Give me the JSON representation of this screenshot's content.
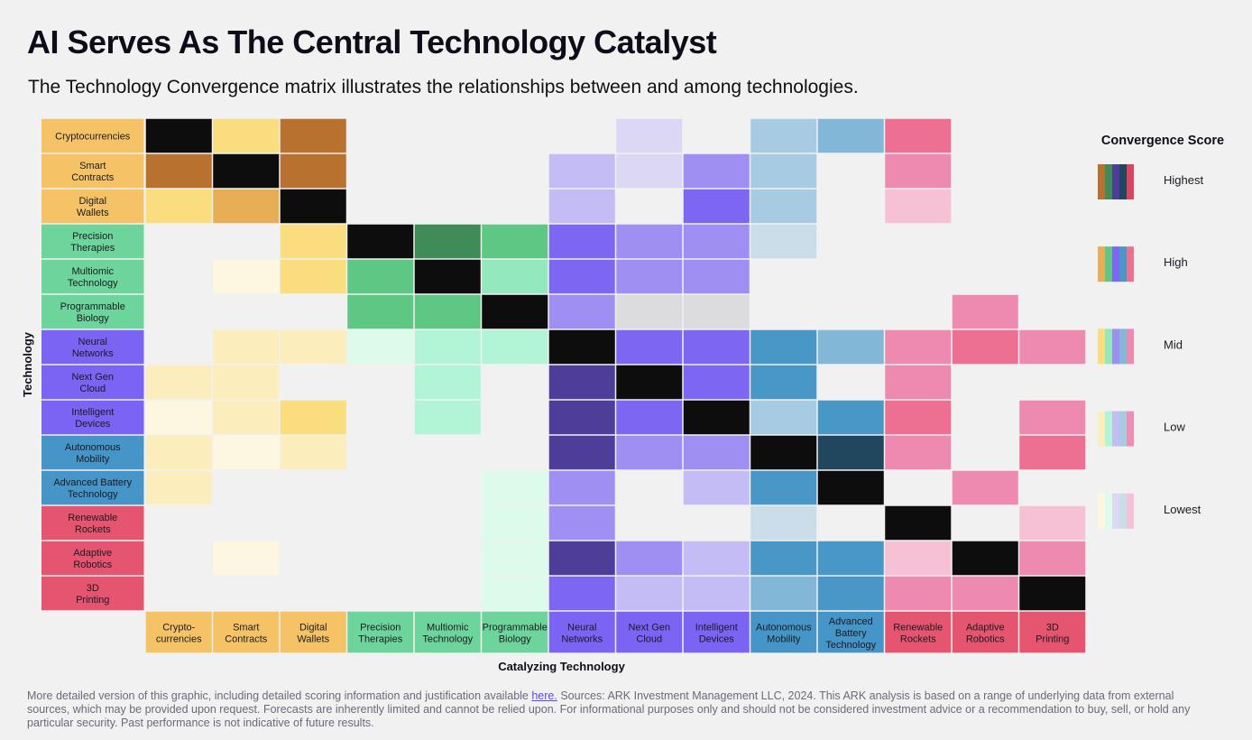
{
  "title": "AI Serves As The Central Technology Catalyst",
  "subtitle": "The Technology Convergence matrix illustrates the relationships between and among technologies.",
  "footer": {
    "text_before": "More detailed version of this graphic, including detailed scoring information and justification available ",
    "link_label": "here.",
    "text_after": " Sources: ARK Investment Management LLC, 2024. This ARK analysis is based on a range of underlying data from external sources, which may be provided upon request. Forecasts are inherently limited and cannot be relied upon. For informational purposes only and should not be considered investment advice or a recommendation to buy, sell, or hold any particular security. Past performance is not indicative of future results."
  },
  "chart_data": {
    "type": "heatmap",
    "ylabel": "Technology",
    "xlabel": "Catalyzing Technology",
    "legend_title": "Convergence Score",
    "legend_placement": "right",
    "levels": [
      "Lowest",
      "Low",
      "Mid",
      "High",
      "Highest"
    ],
    "legend_order": [
      "Highest",
      "High",
      "Mid",
      "Low",
      "Lowest"
    ],
    "groups": {
      "crypto": {
        "header": "#f5c366",
        "shades": [
          "#fdf6e0",
          "#fcedbc",
          "#fadd7e",
          "#e8ae55",
          "#b8712f"
        ]
      },
      "bio": {
        "header": "#6dd59b",
        "shades": [
          "#ddfbeb",
          "#b1f4d6",
          "#93e9bd",
          "#5ec784",
          "#3f8c58"
        ]
      },
      "ai": {
        "header": "#7b63f3",
        "shades": [
          "#dbd7f5",
          "#c4bcf4",
          "#9f8ff2",
          "#7d66f2",
          "#4e3e9a"
        ]
      },
      "mobility": {
        "header": "#4595c8",
        "shades": [
          "#cbdde8",
          "#a6cbe2",
          "#82b7d7",
          "#4897c6",
          "#21475f"
        ]
      },
      "robotics": {
        "header": "#e5556f",
        "shades": [
          "#f6c0d5",
          "#f08eb1",
          "#ee8aaf",
          "#ed7093",
          "#d9455f"
        ]
      },
      "neutral": {
        "header": "#dcdcdf",
        "shades": [
          "#dcdcdf",
          "#dcdcdf",
          "#dcdcdf",
          "#dcdcdf",
          "#dcdcdf"
        ]
      }
    },
    "self_color": "#0d0d0d",
    "rows": [
      {
        "label": "Cryptocurrencies",
        "group": "crypto"
      },
      {
        "label": "Smart\nContracts",
        "group": "crypto"
      },
      {
        "label": "Digital\nWallets",
        "group": "crypto"
      },
      {
        "label": "Precision\nTherapies",
        "group": "bio"
      },
      {
        "label": "Multiomic\nTechnology",
        "group": "bio"
      },
      {
        "label": "Programmable\nBiology",
        "group": "bio"
      },
      {
        "label": "Neural\nNetworks",
        "group": "ai"
      },
      {
        "label": "Next Gen\nCloud",
        "group": "ai"
      },
      {
        "label": "Intelligent\nDevices",
        "group": "ai"
      },
      {
        "label": "Autonomous\nMobility",
        "group": "mobility"
      },
      {
        "label": "Advanced Battery\nTechnology",
        "group": "mobility"
      },
      {
        "label": "Renewable\nRockets",
        "group": "robotics"
      },
      {
        "label": "Adaptive\nRobotics",
        "group": "robotics"
      },
      {
        "label": "3D\nPrinting",
        "group": "robotics"
      }
    ],
    "columns": [
      {
        "label": "Crypto-\ncurrencies",
        "group": "crypto"
      },
      {
        "label": "Smart\nContracts",
        "group": "crypto"
      },
      {
        "label": "Digital\nWallets",
        "group": "crypto"
      },
      {
        "label": "Precision\nTherapies",
        "group": "bio"
      },
      {
        "label": "Multiomic\nTechnology",
        "group": "bio"
      },
      {
        "label": "Programmable\nBiology",
        "group": "bio"
      },
      {
        "label": "Neural\nNetworks",
        "group": "ai"
      },
      {
        "label": "Next Gen\nCloud",
        "group": "ai"
      },
      {
        "label": "Intelligent\nDevices",
        "group": "ai"
      },
      {
        "label": "Autonomous\nMobility",
        "group": "mobility"
      },
      {
        "label": "Advanced\nBattery\nTechnology",
        "group": "mobility"
      },
      {
        "label": "Renewable\nRockets",
        "group": "robotics"
      },
      {
        "label": "Adaptive\nRobotics",
        "group": "robotics"
      },
      {
        "label": "3D\nPrinting",
        "group": "robotics"
      }
    ],
    "scores": [
      [
        -1,
        3,
        5,
        0,
        0,
        0,
        0,
        1,
        0,
        2,
        3,
        4,
        0,
        0
      ],
      [
        5,
        -1,
        5,
        0,
        0,
        0,
        2,
        1,
        3,
        2,
        0,
        3,
        0,
        0
      ],
      [
        3,
        4,
        -1,
        0,
        0,
        0,
        2,
        0,
        4,
        2,
        0,
        1,
        0,
        0
      ],
      [
        0,
        0,
        3,
        -1,
        5,
        4,
        4,
        3,
        3,
        1,
        0,
        0,
        0,
        0
      ],
      [
        0,
        1,
        3,
        4,
        -1,
        3,
        4,
        3,
        3,
        0,
        0,
        0,
        0,
        0
      ],
      [
        0,
        0,
        0,
        4,
        4,
        -1,
        3,
        "N",
        "N",
        0,
        0,
        0,
        3,
        0
      ],
      [
        0,
        2,
        2,
        1,
        2,
        2,
        -1,
        4,
        4,
        4,
        3,
        3,
        4,
        3
      ],
      [
        2,
        2,
        0,
        0,
        2,
        0,
        5,
        -1,
        4,
        4,
        0,
        3,
        0,
        0
      ],
      [
        1,
        2,
        3,
        0,
        2,
        0,
        5,
        4,
        -1,
        2,
        4,
        4,
        0,
        3
      ],
      [
        2,
        1,
        2,
        0,
        0,
        0,
        5,
        3,
        3,
        -1,
        5,
        3,
        0,
        4
      ],
      [
        2,
        0,
        0,
        0,
        0,
        1,
        3,
        0,
        2,
        4,
        -1,
        0,
        3,
        0
      ],
      [
        0,
        0,
        0,
        0,
        0,
        1,
        3,
        0,
        0,
        1,
        0,
        -1,
        0,
        1
      ],
      [
        0,
        1,
        0,
        0,
        0,
        1,
        5,
        3,
        2,
        4,
        4,
        1,
        -1,
        3
      ],
      [
        0,
        0,
        0,
        0,
        0,
        1,
        4,
        2,
        2,
        3,
        4,
        3,
        3,
        -1
      ]
    ]
  }
}
